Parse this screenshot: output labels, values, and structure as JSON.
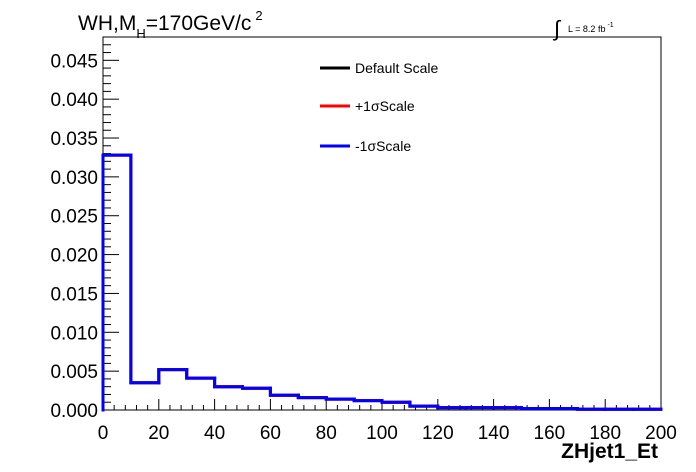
{
  "chart_data": {
    "type": "line",
    "step": true,
    "title": {
      "prefix": "WH,M",
      "subscript": "H",
      "value": "=170GeV/c",
      "superscript": "2"
    },
    "luminosity": {
      "integral_symbol": "∫",
      "text": "L = 8.2 fb",
      "superscript": "-1"
    },
    "xlabel": "ZHjet1_Et",
    "ylabel": "",
    "xlim": [
      0,
      200
    ],
    "ylim": [
      0,
      0.048
    ],
    "x_ticks": [
      0,
      20,
      40,
      60,
      80,
      100,
      120,
      140,
      160,
      180,
      200
    ],
    "x_tick_labels": [
      "0",
      "20",
      "40",
      "60",
      "80",
      "100",
      "120",
      "140",
      "160",
      "180",
      "200"
    ],
    "y_ticks": [
      0,
      0.005,
      0.01,
      0.015,
      0.02,
      0.025,
      0.03,
      0.035,
      0.04,
      0.045
    ],
    "y_tick_labels": [
      "0.000",
      "0.005",
      "0.010",
      "0.015",
      "0.020",
      "0.025",
      "0.030",
      "0.035",
      "0.040",
      "0.045"
    ],
    "bin_edges": [
      0,
      10,
      20,
      30,
      40,
      50,
      60,
      70,
      80,
      90,
      100,
      110,
      120,
      130,
      140,
      150,
      160,
      170,
      180,
      190,
      200
    ],
    "legend_position": "top-center",
    "grid": false,
    "series": [
      {
        "name": "Default Scale",
        "color": "#000000",
        "values": [
          0.0328,
          0.0035,
          0.0052,
          0.0041,
          0.003,
          0.0028,
          0.0019,
          0.0016,
          0.0014,
          0.0012,
          0.001,
          0.0005,
          0.0003,
          0.0003,
          0.0003,
          0.0002,
          0.0002,
          0.0001,
          0.0001,
          0.0001
        ]
      },
      {
        "name": "+1σScale",
        "color": "#ff0000",
        "values": [
          0.0328,
          0.0035,
          0.0052,
          0.0041,
          0.003,
          0.0028,
          0.0019,
          0.0016,
          0.0014,
          0.0012,
          0.001,
          0.0005,
          0.0003,
          0.0003,
          0.0003,
          0.0002,
          0.0002,
          0.0001,
          0.0001,
          0.0001
        ]
      },
      {
        "name": "-1σScale",
        "color": "#0000ff",
        "values": [
          0.0328,
          0.0035,
          0.0052,
          0.0041,
          0.003,
          0.0028,
          0.0019,
          0.0016,
          0.0014,
          0.0012,
          0.001,
          0.0005,
          0.0003,
          0.0003,
          0.0003,
          0.0002,
          0.0002,
          0.0001,
          0.0001,
          0.0001
        ]
      }
    ]
  }
}
